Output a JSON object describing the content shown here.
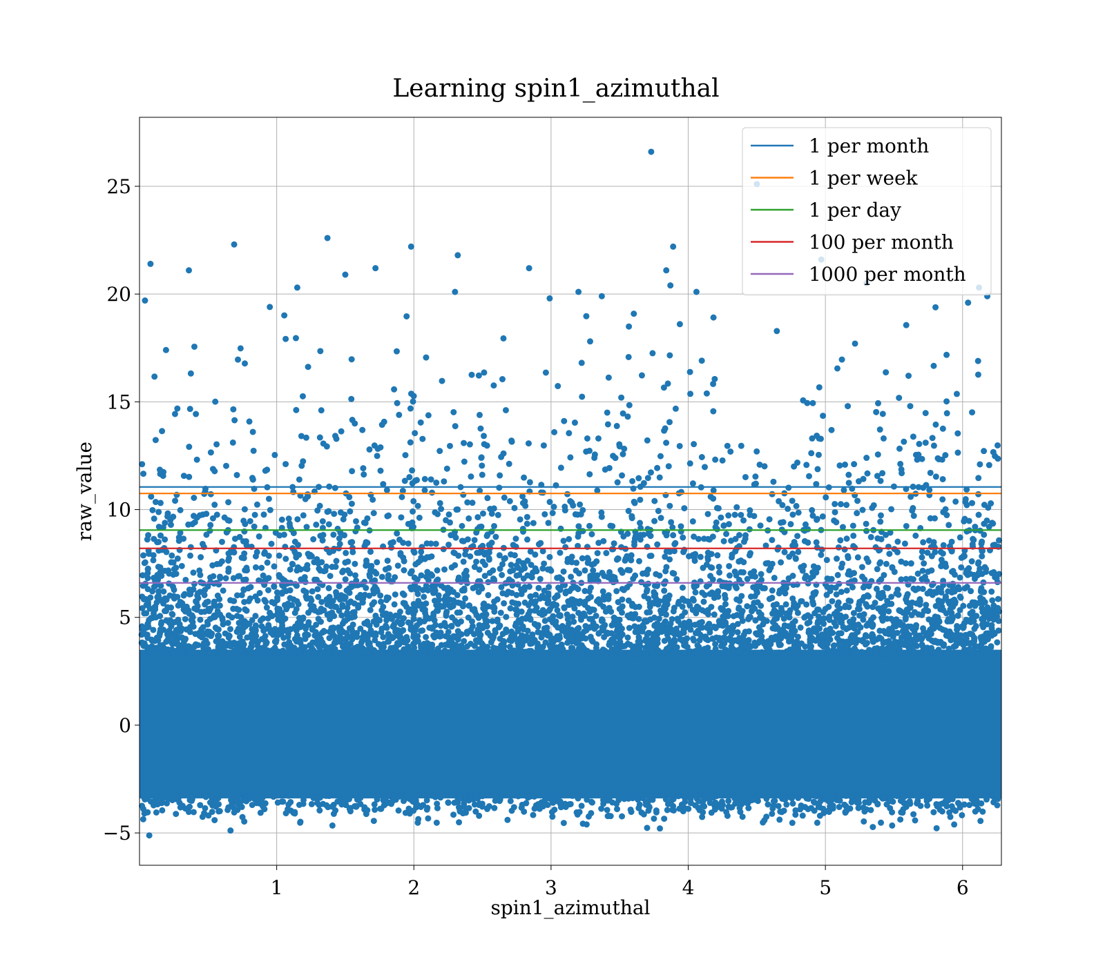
{
  "chart_data": {
    "type": "scatter",
    "title": "Learning spin1_azimuthal",
    "xlabel": "spin1_azimuthal",
    "ylabel": "raw_value",
    "xlim": [
      0.0,
      6.283
    ],
    "ylim": [
      -6.5,
      28.2
    ],
    "x_ticks": [
      1,
      2,
      3,
      4,
      5,
      6
    ],
    "y_ticks": [
      -5,
      0,
      5,
      10,
      15,
      20,
      25
    ],
    "x_tick_labels": [
      "1",
      "2",
      "3",
      "4",
      "5",
      "6"
    ],
    "y_tick_labels": [
      "−5",
      "0",
      "5",
      "10",
      "15",
      "20",
      "25"
    ],
    "grid": true,
    "legend_position": "upper-right",
    "scatter": {
      "color": "#1f77b4",
      "dense_band": [
        -4.0,
        5.0
      ],
      "outlier_points": [
        {
          "x": 3.73,
          "y": 26.6
        },
        {
          "x": 4.5,
          "y": 25.1
        },
        {
          "x": 1.37,
          "y": 22.6
        },
        {
          "x": 0.69,
          "y": 22.3
        },
        {
          "x": 1.98,
          "y": 22.2
        },
        {
          "x": 3.89,
          "y": 22.2
        },
        {
          "x": 2.32,
          "y": 21.8
        },
        {
          "x": 4.97,
          "y": 21.6
        },
        {
          "x": 0.08,
          "y": 21.4
        },
        {
          "x": 2.84,
          "y": 21.2
        },
        {
          "x": 1.72,
          "y": 21.2
        },
        {
          "x": 0.36,
          "y": 21.1
        },
        {
          "x": 3.84,
          "y": 21.1
        },
        {
          "x": 1.5,
          "y": 20.9
        },
        {
          "x": 5.3,
          "y": 20.5
        },
        {
          "x": 6.12,
          "y": 20.3
        },
        {
          "x": 1.15,
          "y": 20.3
        },
        {
          "x": 3.87,
          "y": 20.4
        },
        {
          "x": 4.06,
          "y": 20.1
        },
        {
          "x": 2.3,
          "y": 20.1
        },
        {
          "x": 3.2,
          "y": 20.1
        },
        {
          "x": 0.04,
          "y": 19.7
        },
        {
          "x": 2.99,
          "y": 19.8
        },
        {
          "x": 0.95,
          "y": 19.4
        },
        {
          "x": 3.37,
          "y": 19.9
        },
        {
          "x": 6.04,
          "y": 19.6
        },
        {
          "x": 6.18,
          "y": 19.9
        }
      ]
    },
    "series": [
      {
        "name": "1 per month",
        "color": "#1f77b4",
        "y": 11.05
      },
      {
        "name": "1 per week",
        "color": "#ff7f0e",
        "y": 10.75
      },
      {
        "name": "1 per day",
        "color": "#2ca02c",
        "y": 9.05
      },
      {
        "name": "100 per month",
        "color": "#d62728",
        "y": 8.2
      },
      {
        "name": "1000 per month",
        "color": "#9467bd",
        "y": 6.6
      }
    ]
  }
}
